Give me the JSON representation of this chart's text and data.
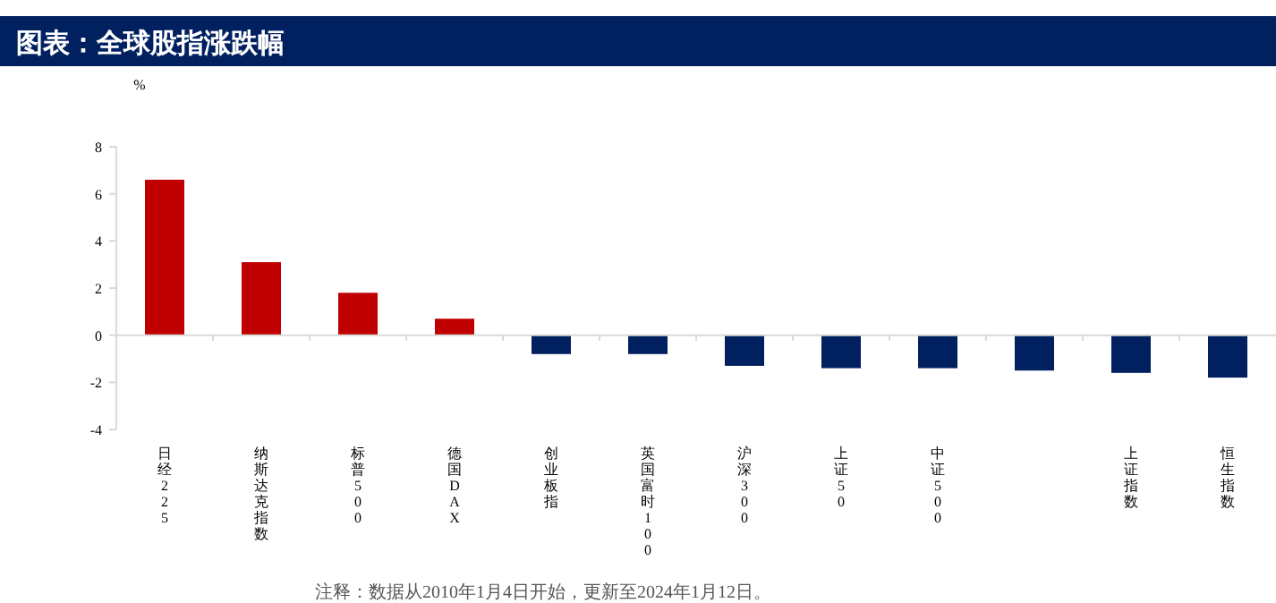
{
  "chart_data": {
    "type": "bar",
    "title": "图表：全球股指涨跌幅",
    "ylabel": "%",
    "categories": [
      "日经225",
      "纳斯达克指数",
      "标普500",
      "德国DAX",
      "创业板指",
      "英国富时100",
      "沪深300",
      "上证50",
      "中证500",
      null,
      "上证指数",
      "恒生指数"
    ],
    "values": [
      6.6,
      3.1,
      1.8,
      0.7,
      -0.8,
      -0.8,
      -1.3,
      -1.4,
      -1.4,
      -1.5,
      -1.6,
      -1.8
    ],
    "colors": [
      "#c00000",
      "#c00000",
      "#c00000",
      "#c00000",
      "#002060",
      "#002060",
      "#002060",
      "#002060",
      "#002060",
      "#002060",
      "#002060",
      "#002060"
    ],
    "ylim": [
      -4,
      8
    ],
    "yticks": [
      -4,
      -2,
      0,
      2,
      4,
      6,
      8
    ],
    "annotations": [
      "注释：数据从2010年1月4日开始，更新至2024年1月12日。"
    ]
  }
}
